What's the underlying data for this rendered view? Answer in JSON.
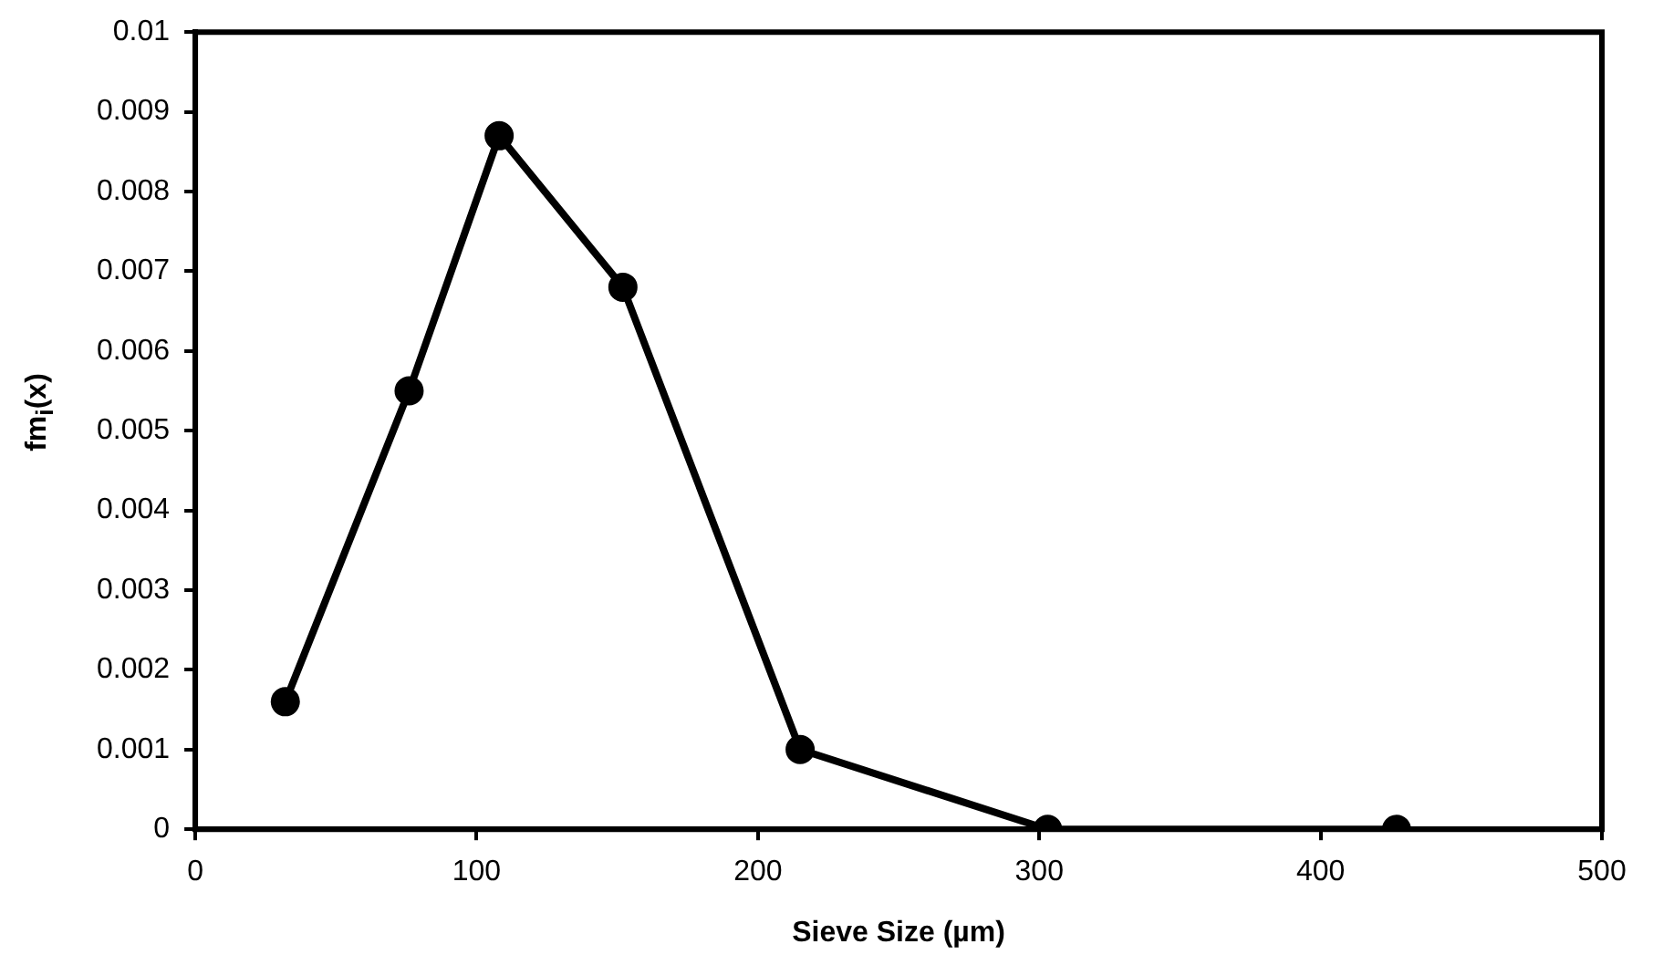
{
  "chart_data": {
    "type": "line",
    "xlabel": "Sieve Size (µm)",
    "ylabel": "fm$_{i}$(x)",
    "x": [
      32,
      76,
      108,
      152,
      215,
      303,
      427
    ],
    "series": [
      {
        "color": "#000000",
        "values": [
          0.0016,
          0.0055,
          0.0087,
          0.0068,
          0.001,
          0,
          0
        ]
      }
    ],
    "xlim": [
      0,
      500
    ],
    "xticks": [
      0,
      100,
      200,
      300,
      400,
      500
    ],
    "ylim": [
      0,
      0.01
    ],
    "yticks": [
      0,
      0.001,
      0.002,
      0.003,
      0.004,
      0.005,
      0.006,
      0.007,
      0.008,
      0.009,
      0.01
    ],
    "grid": false,
    "legend": false,
    "marker": "circle",
    "line_style": "solid"
  }
}
